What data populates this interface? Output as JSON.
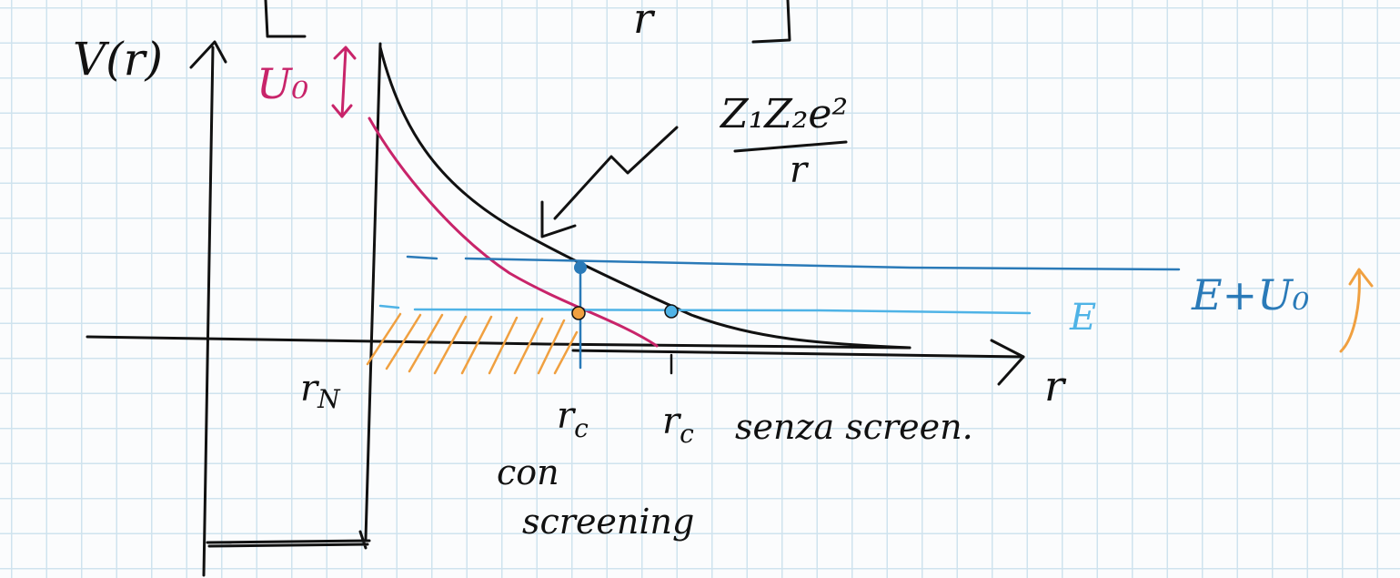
{
  "labels": {
    "y_axis": "V(r)",
    "x_axis": "r",
    "u0": "U₀",
    "r_n": "r_N",
    "r_c_screened": "r_c",
    "r_c_unscreened": "r_c",
    "sin_screening": "senza screen.",
    "con": "con",
    "screening": "screening",
    "coulomb_numerator": "Z₁Z₂e²",
    "coulomb_denominator": "r",
    "energy_e": "E",
    "energy_e_plus_u0": "E+U₀",
    "top_fragment": "r"
  },
  "colors": {
    "ink": "#111111",
    "screened_curve": "#c8246a",
    "e_plus_u0_line": "#2a7ab8",
    "e_line": "#4fb3e6",
    "hatch": "#f0a040",
    "grid": "#cfe3ee"
  }
}
